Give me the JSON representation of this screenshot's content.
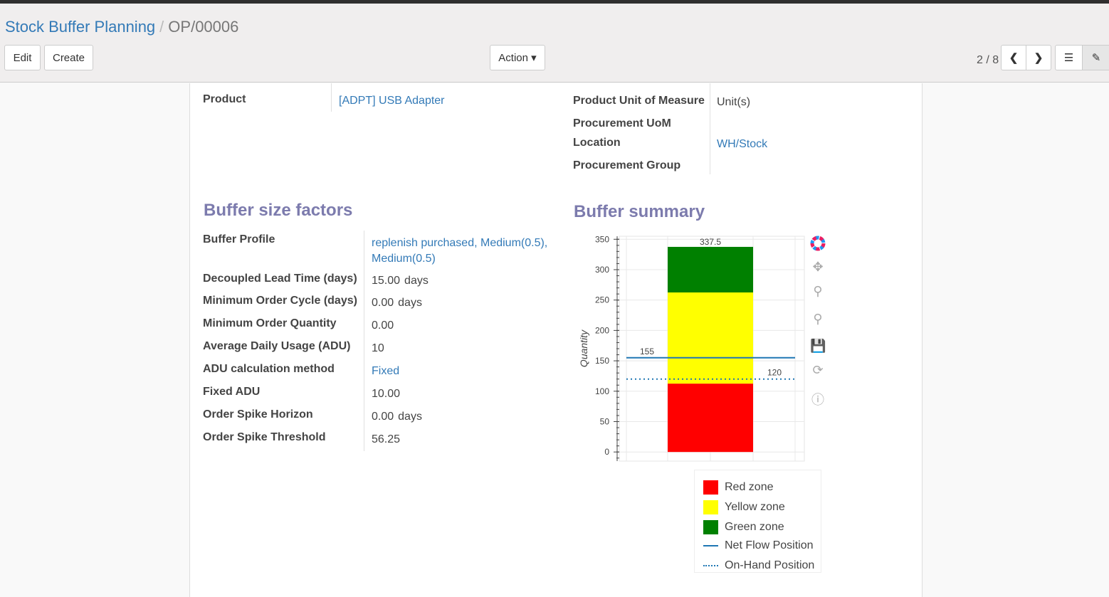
{
  "breadcrumb": {
    "parent": "Stock Buffer Planning",
    "current": "OP/00006"
  },
  "toolbar": {
    "edit": "Edit",
    "create": "Create",
    "action": "Action ▾",
    "pager": "2 / 8"
  },
  "form": {
    "product_label": "Product",
    "product_value": "[ADPT] USB Adapter",
    "uom_label": "Product Unit of Measure",
    "uom_value": "Unit(s)",
    "proc_uom_label": "Procurement UoM",
    "location_label": "Location",
    "location_value": "WH/Stock",
    "proc_group_label": "Procurement Group"
  },
  "factors": {
    "title": "Buffer size factors",
    "rows": [
      {
        "label": "Buffer Profile",
        "value": "replenish purchased, Medium(0.5), Medium(0.5)",
        "link": true
      },
      {
        "label": "Decoupled Lead Time (days)",
        "value": "15.00",
        "unit": "days"
      },
      {
        "label": "Minimum Order Cycle (days)",
        "value": "0.00",
        "unit": "days"
      },
      {
        "label": "Minimum Order Quantity",
        "value": "0.00"
      },
      {
        "label": "Average Daily Usage (ADU)",
        "value": "10"
      },
      {
        "label": "ADU calculation method",
        "value": "Fixed",
        "link": true
      },
      {
        "label": "Fixed ADU",
        "value": "10.00"
      },
      {
        "label": "Order Spike Horizon",
        "value": "0.00",
        "unit": "days"
      },
      {
        "label": "Order Spike Threshold",
        "value": "56.25"
      }
    ]
  },
  "summary": {
    "title": "Buffer summary"
  },
  "chart_data": {
    "type": "bar",
    "ylabel": "Quantity",
    "ylim": [
      -15,
      355
    ],
    "yticks": [
      0,
      50,
      100,
      150,
      200,
      250,
      300,
      350
    ],
    "grid": true,
    "stack": [
      {
        "name": "Red zone",
        "bottom": 0,
        "top": 112.5,
        "color": "#ff0000",
        "label": "112.5"
      },
      {
        "name": "Yellow zone",
        "bottom": 112.5,
        "top": 262.5,
        "color": "#ffff00",
        "label": "262.5"
      },
      {
        "name": "Green zone",
        "bottom": 262.5,
        "top": 337.5,
        "color": "#008000",
        "label": "337.5"
      }
    ],
    "lines": [
      {
        "name": "Net Flow Position",
        "value": 155,
        "style": "solid",
        "color": "#1f77b4",
        "label": "155"
      },
      {
        "name": "On-Hand Position",
        "value": 120,
        "style": "dotted",
        "color": "#1f77b4",
        "label": "120"
      }
    ],
    "legend": "bottom"
  }
}
